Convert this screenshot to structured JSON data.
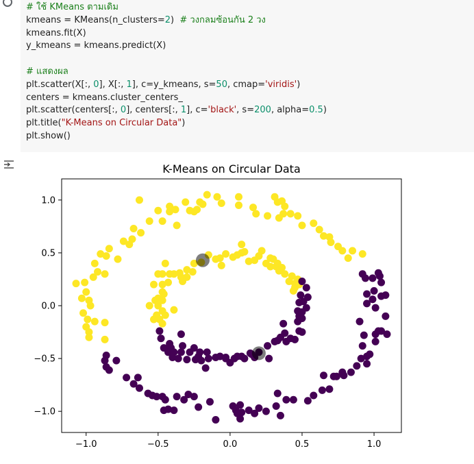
{
  "code": {
    "lines": [
      [
        {
          "t": "# ใช้ KMeans ตามเดิม",
          "c": "cmt"
        }
      ],
      [
        {
          "t": "kmeans = KMeans(n_clusters=",
          "c": ""
        },
        {
          "t": "2",
          "c": "num"
        },
        {
          "t": ")  ",
          "c": ""
        },
        {
          "t": "# วงกลมซ้อนกัน 2 วง",
          "c": "cmt"
        }
      ],
      [
        {
          "t": "kmeans.fit(X)",
          "c": ""
        }
      ],
      [
        {
          "t": "y_kmeans = kmeans.predict(X)",
          "c": ""
        }
      ],
      [
        {
          "t": " ",
          "c": ""
        }
      ],
      [
        {
          "t": "# แสดงผล",
          "c": "cmt"
        }
      ],
      [
        {
          "t": "plt.scatter(X[:, ",
          "c": ""
        },
        {
          "t": "0",
          "c": "num"
        },
        {
          "t": "], X[:, ",
          "c": ""
        },
        {
          "t": "1",
          "c": "num"
        },
        {
          "t": "], c=y_kmeans, s=",
          "c": ""
        },
        {
          "t": "50",
          "c": "num"
        },
        {
          "t": ", cmap=",
          "c": ""
        },
        {
          "t": "'viridis'",
          "c": "str"
        },
        {
          "t": ")",
          "c": ""
        }
      ],
      [
        {
          "t": "centers = kmeans.cluster_centers_",
          "c": ""
        }
      ],
      [
        {
          "t": "plt.scatter(centers[:, ",
          "c": ""
        },
        {
          "t": "0",
          "c": "num"
        },
        {
          "t": "], centers[:, ",
          "c": ""
        },
        {
          "t": "1",
          "c": "num"
        },
        {
          "t": "], c=",
          "c": ""
        },
        {
          "t": "'black'",
          "c": "str"
        },
        {
          "t": ", s=",
          "c": ""
        },
        {
          "t": "200",
          "c": "num"
        },
        {
          "t": ", alpha=",
          "c": ""
        },
        {
          "t": "0.5",
          "c": "num"
        },
        {
          "t": ")",
          "c": ""
        }
      ],
      [
        {
          "t": "plt.title(",
          "c": ""
        },
        {
          "t": "\"K-Means on Circular Data\"",
          "c": "str"
        },
        {
          "t": ")",
          "c": ""
        }
      ],
      [
        {
          "t": "plt.show()",
          "c": ""
        }
      ]
    ]
  },
  "colors": {
    "yellow": "#fde725",
    "purple": "#440154",
    "center": "#000000"
  },
  "chart_data": {
    "type": "scatter",
    "title": "K-Means on Circular Data",
    "xlabel": "",
    "ylabel": "",
    "xlim": [
      -1.17,
      1.19
    ],
    "ylim": [
      -1.2,
      1.2
    ],
    "xticks": [
      -1.0,
      -0.5,
      0.0,
      0.5,
      1.0
    ],
    "xtick_labels": [
      "−1.0",
      "−0.5",
      "0.0",
      "0.5",
      "1.0"
    ],
    "yticks": [
      1.0,
      0.5,
      0.0,
      -0.5,
      -1.0
    ],
    "ytick_labels": [
      "1.0",
      "0.5",
      "0.0",
      "−0.5",
      "−1.0"
    ],
    "grid": false,
    "series": [
      {
        "cluster": 1,
        "color": "#fde725",
        "points": [
          [
            -1.07,
            0.21
          ],
          [
            -1.01,
            0.22
          ],
          [
            -1.0,
            0.13
          ],
          [
            -1.03,
            0.07
          ],
          [
            -0.98,
            0.05
          ],
          [
            -0.97,
            0.0
          ],
          [
            -1.02,
            -0.07
          ],
          [
            -0.99,
            -0.13
          ],
          [
            -0.94,
            -0.15
          ],
          [
            -1.0,
            -0.2
          ],
          [
            -0.98,
            -0.25
          ],
          [
            -0.98,
            -0.3
          ],
          [
            -0.87,
            -0.16
          ],
          [
            -0.87,
            -0.32
          ],
          [
            -0.95,
            0.27
          ],
          [
            -0.94,
            0.4
          ],
          [
            -0.92,
            0.32
          ],
          [
            -0.87,
            0.3
          ],
          [
            -0.9,
            0.49
          ],
          [
            -0.86,
            0.47
          ],
          [
            -0.84,
            0.54
          ],
          [
            -0.78,
            0.44
          ],
          [
            -0.74,
            0.61
          ],
          [
            -0.7,
            0.58
          ],
          [
            -0.68,
            0.63
          ],
          [
            -0.67,
            0.73
          ],
          [
            -0.62,
            0.69
          ],
          [
            -0.56,
            0.8
          ],
          [
            -0.63,
            1.0
          ],
          [
            -0.5,
            0.9
          ],
          [
            -0.47,
            0.8
          ],
          [
            -0.42,
            0.89
          ],
          [
            -0.42,
            0.94
          ],
          [
            -0.38,
            0.91
          ],
          [
            -0.37,
            0.76
          ],
          [
            -0.31,
            0.98
          ],
          [
            -0.28,
            0.9
          ],
          [
            -0.25,
            0.89
          ],
          [
            -0.23,
            0.91
          ],
          [
            -0.21,
            0.98
          ],
          [
            -0.19,
            0.96
          ],
          [
            -0.16,
            1.05
          ],
          [
            -0.09,
            1.03
          ],
          [
            -0.06,
            0.97
          ],
          [
            0.06,
            1.03
          ],
          [
            0.06,
            0.95
          ],
          [
            0.16,
            0.93
          ],
          [
            0.18,
            0.87
          ],
          [
            0.26,
            0.85
          ],
          [
            0.31,
            1.03
          ],
          [
            0.33,
            0.98
          ],
          [
            0.36,
            0.99
          ],
          [
            0.38,
            0.94
          ],
          [
            0.37,
            0.87
          ],
          [
            0.34,
            0.83
          ],
          [
            0.42,
            0.87
          ],
          [
            0.47,
            0.85
          ],
          [
            0.5,
            0.76
          ],
          [
            0.58,
            0.78
          ],
          [
            0.62,
            0.72
          ],
          [
            0.65,
            0.66
          ],
          [
            0.69,
            0.65
          ],
          [
            0.7,
            0.6
          ],
          [
            0.75,
            0.56
          ],
          [
            0.78,
            0.52
          ],
          [
            0.85,
            0.52
          ],
          [
            0.92,
            0.49
          ],
          [
            0.82,
            0.45
          ],
          [
            -0.45,
            0.4
          ],
          [
            -0.42,
            0.3
          ],
          [
            -0.47,
            0.3
          ],
          [
            -0.5,
            0.3
          ],
          [
            -0.53,
            0.2
          ],
          [
            -0.47,
            0.2
          ],
          [
            -0.43,
            0.22
          ],
          [
            -0.47,
            0.13
          ],
          [
            -0.5,
            0.07
          ],
          [
            -0.52,
            0.05
          ],
          [
            -0.47,
            0.05
          ],
          [
            -0.56,
            0.0
          ],
          [
            -0.5,
            0.0
          ],
          [
            -0.47,
            -0.05
          ],
          [
            -0.51,
            -0.09
          ],
          [
            -0.53,
            -0.13
          ],
          [
            -0.49,
            -0.13
          ],
          [
            -0.47,
            -0.17
          ],
          [
            -0.45,
            -0.09
          ],
          [
            -0.39,
            -0.04
          ],
          [
            -0.46,
            0.11
          ],
          [
            -0.39,
            0.3
          ],
          [
            -0.35,
            0.31
          ],
          [
            -0.34,
            0.27
          ],
          [
            -0.3,
            0.27
          ],
          [
            -0.33,
            0.23
          ],
          [
            -0.3,
            0.34
          ],
          [
            -0.26,
            0.32
          ],
          [
            -0.25,
            0.4
          ],
          [
            -0.2,
            0.41
          ],
          [
            -0.15,
            0.48
          ],
          [
            -0.1,
            0.44
          ],
          [
            -0.07,
            0.45
          ],
          [
            -0.06,
            0.38
          ],
          [
            -0.03,
            0.49
          ],
          [
            0.02,
            0.46
          ],
          [
            0.05,
            0.48
          ],
          [
            0.08,
            0.58
          ],
          [
            0.08,
            0.5
          ],
          [
            0.1,
            0.51
          ],
          [
            0.13,
            0.42
          ],
          [
            0.17,
            0.43
          ],
          [
            0.2,
            0.47
          ],
          [
            0.22,
            0.52
          ],
          [
            0.25,
            0.4
          ],
          [
            0.28,
            0.37
          ],
          [
            0.28,
            0.45
          ],
          [
            0.3,
            0.44
          ],
          [
            0.32,
            0.37
          ],
          [
            0.33,
            0.4
          ],
          [
            0.36,
            0.36
          ],
          [
            0.38,
            0.3
          ],
          [
            0.34,
            0.33
          ],
          [
            0.43,
            0.28
          ],
          [
            0.45,
            0.21
          ],
          [
            0.41,
            0.23
          ],
          [
            0.44,
            0.14
          ],
          [
            0.47,
            0.25
          ],
          [
            0.48,
            0.2
          ],
          [
            0.45,
            0.17
          ]
        ]
      },
      {
        "cluster": 0,
        "color": "#440154",
        "points": [
          [
            -0.86,
            -0.47
          ],
          [
            -0.87,
            -0.52
          ],
          [
            -0.86,
            -0.58
          ],
          [
            -0.84,
            -0.61
          ],
          [
            -0.79,
            -0.52
          ],
          [
            -0.72,
            -0.68
          ],
          [
            -0.67,
            -0.74
          ],
          [
            -0.63,
            -0.78
          ],
          [
            -0.64,
            -0.68
          ],
          [
            -0.57,
            -0.83
          ],
          [
            -0.54,
            -0.85
          ],
          [
            -0.51,
            -0.86
          ],
          [
            -0.47,
            -0.86
          ],
          [
            -0.45,
            -0.89
          ],
          [
            -0.46,
            -0.99
          ],
          [
            -0.43,
            -0.98
          ],
          [
            -0.39,
            -0.99
          ],
          [
            -0.37,
            -0.86
          ],
          [
            -0.32,
            -0.89
          ],
          [
            -0.29,
            -0.84
          ],
          [
            -0.25,
            -0.86
          ],
          [
            -0.22,
            -0.96
          ],
          [
            -0.14,
            -0.91
          ],
          [
            -0.1,
            -1.08
          ],
          [
            0.02,
            -0.95
          ],
          [
            0.04,
            -0.99
          ],
          [
            0.05,
            -1.02
          ],
          [
            0.07,
            -1.07
          ],
          [
            0.07,
            -0.94
          ],
          [
            0.08,
            -1.01
          ],
          [
            0.13,
            -0.99
          ],
          [
            0.17,
            -1.02
          ],
          [
            0.2,
            -0.97
          ],
          [
            0.25,
            -1.0
          ],
          [
            0.32,
            -0.95
          ],
          [
            0.33,
            -0.83
          ],
          [
            0.35,
            -1.04
          ],
          [
            0.39,
            -0.89
          ],
          [
            0.44,
            -0.89
          ],
          [
            0.54,
            -0.9
          ],
          [
            0.58,
            -0.85
          ],
          [
            0.64,
            -0.8
          ],
          [
            0.65,
            -0.66
          ],
          [
            0.69,
            -0.79
          ],
          [
            0.72,
            -0.67
          ],
          [
            0.74,
            -0.67
          ],
          [
            0.78,
            -0.63
          ],
          [
            0.79,
            -0.66
          ],
          [
            0.84,
            -0.63
          ],
          [
            0.88,
            -0.57
          ],
          [
            0.91,
            -0.5
          ],
          [
            0.95,
            -0.48
          ],
          [
            0.95,
            -0.55
          ],
          [
            0.97,
            -0.46
          ],
          [
            0.92,
            -0.38
          ],
          [
            0.93,
            -0.28
          ],
          [
            0.9,
            -0.15
          ],
          [
            1.01,
            -0.27
          ],
          [
            1.01,
            -0.34
          ],
          [
            1.05,
            -0.24
          ],
          [
            1.03,
            -0.24
          ],
          [
            1.09,
            -0.27
          ],
          [
            1.08,
            -0.1
          ],
          [
            1.01,
            -0.02
          ],
          [
            0.95,
            0.02
          ],
          [
            0.99,
            0.06
          ],
          [
            0.95,
            0.11
          ],
          [
            1.0,
            0.14
          ],
          [
            1.05,
            0.09
          ],
          [
            1.08,
            0.1
          ],
          [
            1.05,
            0.22
          ],
          [
            1.04,
            0.28
          ],
          [
            1.03,
            0.31
          ],
          [
            0.99,
            0.26
          ],
          [
            0.94,
            0.26
          ],
          [
            0.92,
            0.3
          ],
          [
            -0.49,
            -0.24
          ],
          [
            -0.48,
            -0.31
          ],
          [
            -0.46,
            -0.4
          ],
          [
            -0.42,
            -0.36
          ],
          [
            -0.41,
            -0.4
          ],
          [
            -0.43,
            -0.44
          ],
          [
            -0.39,
            -0.44
          ],
          [
            -0.4,
            -0.49
          ],
          [
            -0.36,
            -0.5
          ],
          [
            -0.34,
            -0.44
          ],
          [
            -0.33,
            -0.38
          ],
          [
            -0.34,
            -0.27
          ],
          [
            -0.3,
            -0.51
          ],
          [
            -0.28,
            -0.44
          ],
          [
            -0.25,
            -0.4
          ],
          [
            -0.24,
            -0.51
          ],
          [
            -0.21,
            -0.44
          ],
          [
            -0.22,
            -0.48
          ],
          [
            -0.2,
            -0.52
          ],
          [
            -0.17,
            -0.59
          ],
          [
            -0.16,
            -0.44
          ],
          [
            -0.15,
            -0.5
          ],
          [
            -0.1,
            -0.49
          ],
          [
            -0.07,
            -0.48
          ],
          [
            -0.03,
            -0.49
          ],
          [
            -0.03,
            -0.5
          ],
          [
            0.0,
            -0.54
          ],
          [
            0.03,
            -0.5
          ],
          [
            0.05,
            -0.48
          ],
          [
            0.08,
            -0.48
          ],
          [
            0.1,
            -0.5
          ],
          [
            0.14,
            -0.45
          ],
          [
            0.15,
            -0.46
          ],
          [
            0.17,
            -0.49
          ],
          [
            0.2,
            -0.44
          ],
          [
            0.26,
            -0.38
          ],
          [
            0.27,
            -0.5
          ],
          [
            0.31,
            -0.34
          ],
          [
            0.33,
            -0.33
          ],
          [
            0.35,
            -0.3
          ],
          [
            0.39,
            -0.34
          ],
          [
            0.38,
            -0.26
          ],
          [
            0.37,
            -0.17
          ],
          [
            0.42,
            -0.31
          ],
          [
            0.45,
            -0.32
          ],
          [
            0.48,
            -0.24
          ],
          [
            0.5,
            -0.25
          ],
          [
            0.47,
            -0.15
          ],
          [
            0.48,
            -0.1
          ],
          [
            0.47,
            -0.05
          ],
          [
            0.5,
            -0.06
          ],
          [
            0.5,
            -0.12
          ],
          [
            0.53,
            -0.02
          ],
          [
            0.48,
            0.03
          ],
          [
            0.51,
            0.04
          ],
          [
            0.49,
            0.1
          ],
          [
            0.54,
            0.08
          ],
          [
            0.53,
            0.17
          ],
          [
            0.5,
            0.23
          ]
        ]
      }
    ],
    "centers": [
      [
        -0.19,
        0.43
      ],
      [
        0.2,
        -0.45
      ]
    ]
  }
}
